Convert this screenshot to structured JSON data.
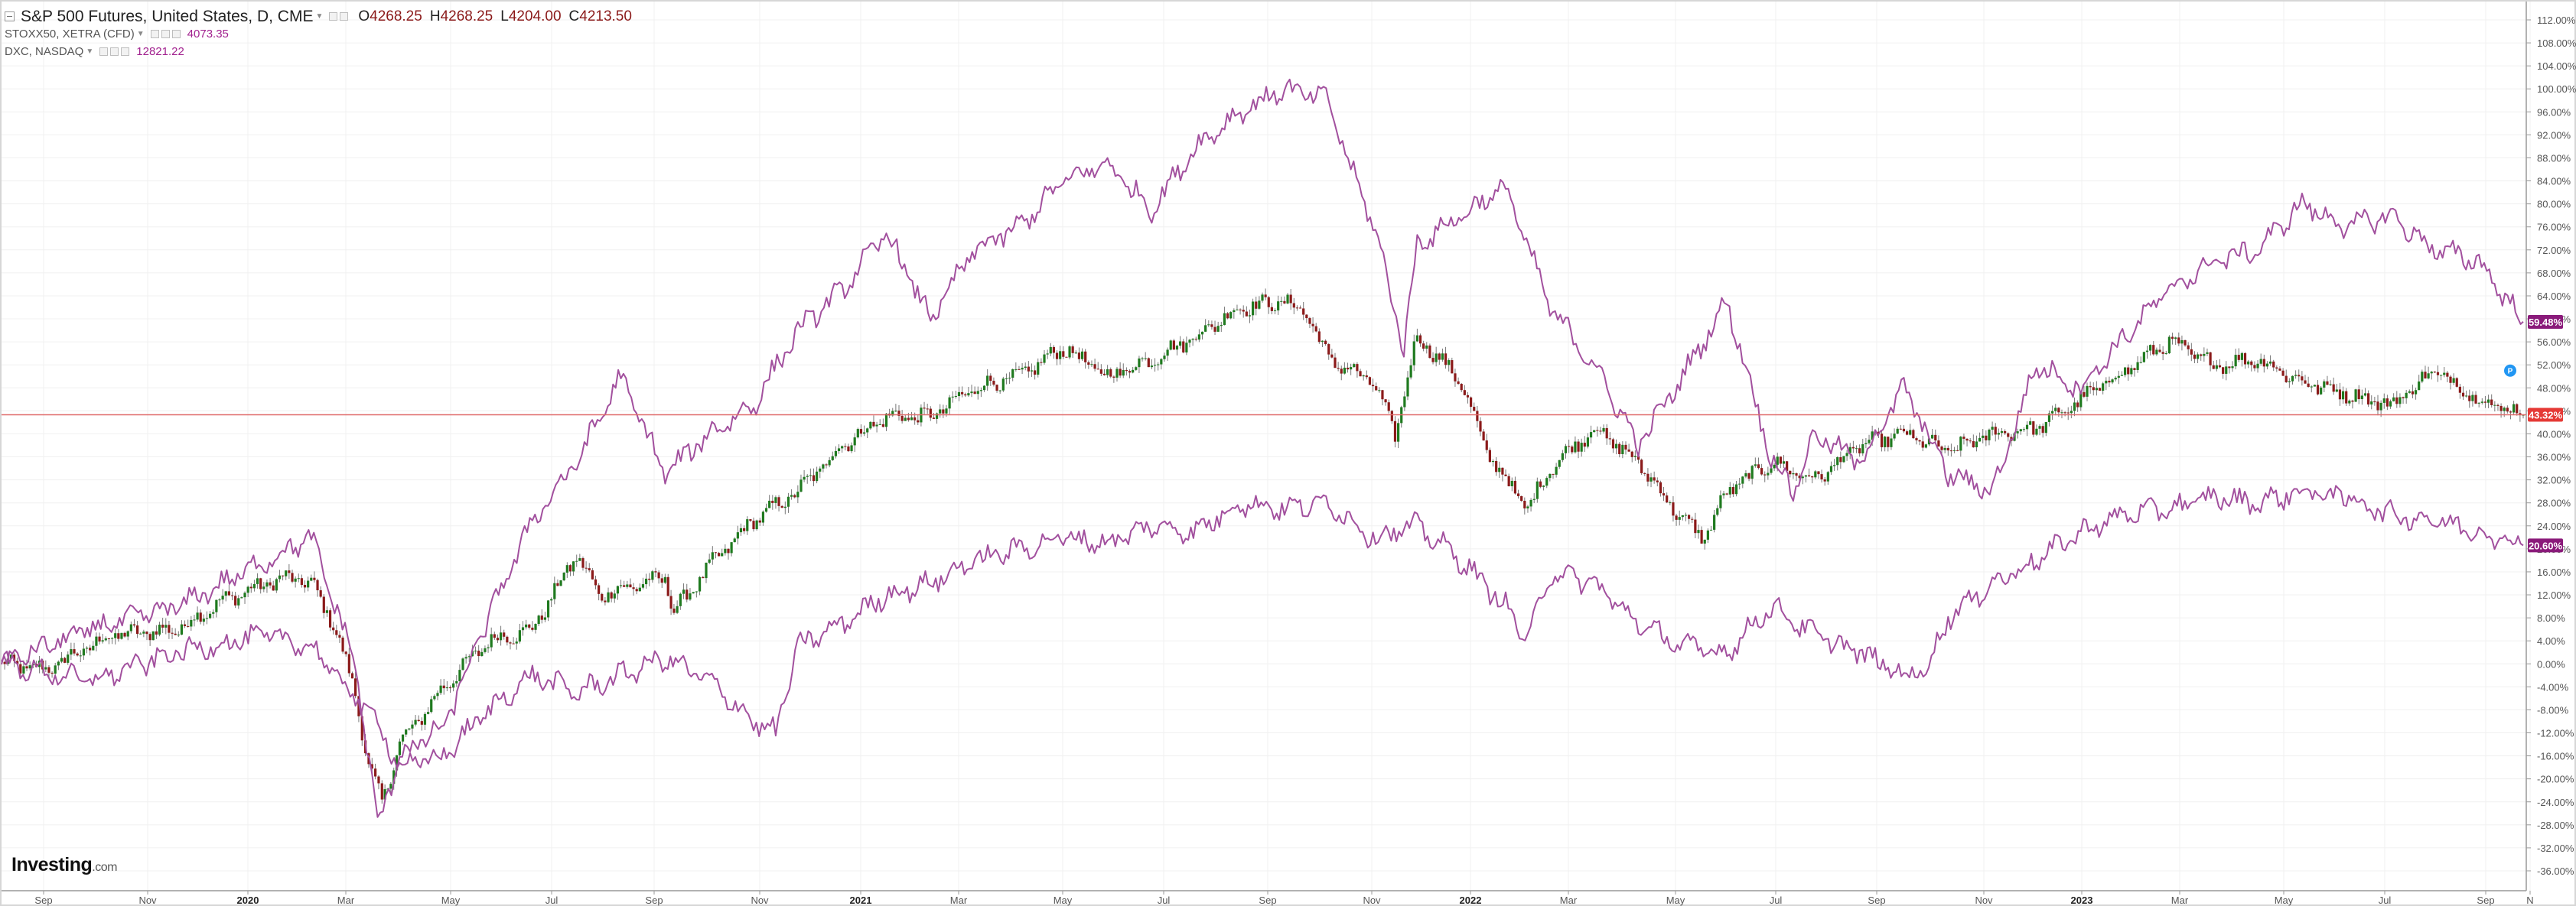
{
  "header": {
    "title": "S&P 500 Futures, United States, D, CME",
    "ohlc": [
      {
        "key": "O",
        "value": "4268.25"
      },
      {
        "key": "H",
        "value": "4268.25"
      },
      {
        "key": "L",
        "value": "4204.00"
      },
      {
        "key": "C",
        "value": "4213.50"
      }
    ],
    "compare": [
      {
        "name": "STOXX50, XETRA (CFD)",
        "value": "4073.35"
      },
      {
        "name": "DXC, NASDAQ",
        "value": "12821.22"
      }
    ]
  },
  "logo": {
    "name": "Investing",
    "suffix": ".com"
  },
  "colors": {
    "up_candle": "#1f7a1f",
    "down_candle": "#8b1a1a",
    "compare_line": "#a2509e",
    "current_line": "#e06a6a",
    "last_price_badge": "#e53935",
    "compare_badge": "#8a1a7a",
    "marker": "#2196f3"
  },
  "chart_data": {
    "type": "line",
    "x_axis": {
      "labels": [
        "Sep",
        "Nov",
        "2020",
        "Mar",
        "May",
        "Jul",
        "Sep",
        "Nov",
        "2021",
        "Mar",
        "May",
        "Jul",
        "Sep",
        "Nov",
        "2022",
        "Mar",
        "May",
        "Jul",
        "Sep",
        "Nov",
        "2023",
        "Mar",
        "May",
        "Jul",
        "Sep",
        "N"
      ],
      "bold_labels": [
        "2020",
        "2021",
        "2022",
        "2023"
      ]
    },
    "y_axis": {
      "unit": "%",
      "ylim": [
        -36,
        114
      ],
      "ticks": [
        "112.00%",
        "108.00%",
        "104.00%",
        "100.00%",
        "96.00%",
        "92.00%",
        "88.00%",
        "84.00%",
        "80.00%",
        "76.00%",
        "72.00%",
        "68.00%",
        "64.00%",
        "60.00%",
        "56.00%",
        "52.00%",
        "48.00%",
        "44.00%",
        "40.00%",
        "36.00%",
        "32.00%",
        "28.00%",
        "24.00%",
        "20.00%",
        "16.00%",
        "12.00%",
        "8.00%",
        "4.00%",
        "0.00%",
        "-4.00%",
        "-8.00%",
        "-12.00%",
        "-16.00%",
        "-20.00%",
        "-24.00%",
        "-28.00%",
        "-32.00%",
        "-36.00%"
      ]
    },
    "grid": true,
    "series": [
      {
        "style": "candlestick",
        "last_label": "43.32%",
        "last_value": 43.32,
        "points": [
          [
            0,
            0
          ],
          [
            1,
            -1
          ],
          [
            2.5,
            5
          ],
          [
            4,
            6
          ],
          [
            5,
            11
          ],
          [
            6,
            14
          ],
          [
            6.5,
            15
          ],
          [
            7,
            14
          ],
          [
            7.5,
            7
          ],
          [
            8,
            -5
          ],
          [
            8.3,
            -18
          ],
          [
            8.6,
            -24
          ],
          [
            9,
            -14
          ],
          [
            10,
            -4
          ],
          [
            11,
            4
          ],
          [
            12,
            6
          ],
          [
            13,
            19
          ],
          [
            13.5,
            12
          ],
          [
            14,
            13
          ],
          [
            15,
            15
          ],
          [
            15.2,
            9
          ],
          [
            16,
            17
          ],
          [
            17,
            25
          ],
          [
            18,
            30
          ],
          [
            19,
            38
          ],
          [
            20,
            43
          ],
          [
            21,
            43
          ],
          [
            22,
            48
          ],
          [
            23,
            50
          ],
          [
            24,
            55
          ],
          [
            25,
            50
          ],
          [
            26,
            53
          ],
          [
            27,
            57
          ],
          [
            28,
            62
          ],
          [
            29,
            63
          ],
          [
            29.5,
            61
          ],
          [
            30,
            53
          ],
          [
            31,
            49
          ],
          [
            31.5,
            40
          ],
          [
            32,
            57
          ],
          [
            33,
            49
          ],
          [
            33.5,
            38
          ],
          [
            34,
            32
          ],
          [
            34.5,
            27
          ],
          [
            35,
            34
          ],
          [
            36,
            41
          ],
          [
            37,
            35
          ],
          [
            38,
            25
          ],
          [
            38.5,
            22
          ],
          [
            39,
            30
          ],
          [
            40,
            35
          ],
          [
            41,
            32
          ],
          [
            42,
            38
          ],
          [
            43,
            40
          ],
          [
            44,
            37
          ],
          [
            45,
            40
          ],
          [
            46,
            41
          ],
          [
            47,
            46
          ],
          [
            48,
            51
          ],
          [
            49,
            56
          ],
          [
            50,
            52
          ],
          [
            51,
            53
          ],
          [
            52,
            49
          ],
          [
            53,
            47
          ],
          [
            54,
            45
          ],
          [
            55,
            51
          ],
          [
            56,
            46
          ],
          [
            57,
            43.3
          ]
        ]
      },
      {
        "style": "line",
        "last_label": "59.48%",
        "last_value": 59.48,
        "points": [
          [
            0,
            0
          ],
          [
            2,
            6
          ],
          [
            4,
            10
          ],
          [
            6,
            18
          ],
          [
            7,
            22
          ],
          [
            8,
            0
          ],
          [
            8.5,
            -28
          ],
          [
            9,
            -16
          ],
          [
            10,
            -11
          ],
          [
            11,
            8
          ],
          [
            12,
            25
          ],
          [
            13,
            35
          ],
          [
            14,
            50
          ],
          [
            15,
            33
          ],
          [
            16,
            40
          ],
          [
            17,
            45
          ],
          [
            18,
            58
          ],
          [
            19,
            65
          ],
          [
            20,
            75
          ],
          [
            21,
            60
          ],
          [
            22,
            72
          ],
          [
            23,
            76
          ],
          [
            24,
            84
          ],
          [
            25,
            87
          ],
          [
            26,
            79
          ],
          [
            27,
            90
          ],
          [
            28,
            96
          ],
          [
            29,
            100
          ],
          [
            30,
            98
          ],
          [
            30.5,
            86
          ],
          [
            31,
            77
          ],
          [
            31.7,
            55
          ],
          [
            32,
            73
          ],
          [
            33,
            78
          ],
          [
            34,
            83
          ],
          [
            35,
            62
          ],
          [
            36,
            52
          ],
          [
            37,
            38
          ],
          [
            38,
            50
          ],
          [
            39,
            63
          ],
          [
            40,
            36
          ],
          [
            40.5,
            30
          ],
          [
            41,
            40
          ],
          [
            42,
            35
          ],
          [
            43,
            48
          ],
          [
            44,
            33
          ],
          [
            45,
            30
          ],
          [
            46,
            52
          ],
          [
            47,
            48
          ],
          [
            48,
            57
          ],
          [
            49,
            65
          ],
          [
            50,
            70
          ],
          [
            51,
            72
          ],
          [
            52,
            80
          ],
          [
            53,
            76
          ],
          [
            54,
            78
          ],
          [
            55,
            72
          ],
          [
            56,
            70
          ],
          [
            57,
            59.5
          ]
        ]
      },
      {
        "style": "line",
        "last_label": "20.60%",
        "last_value": 20.6,
        "points": [
          [
            0,
            0
          ],
          [
            2,
            -3
          ],
          [
            4,
            2
          ],
          [
            6,
            5
          ],
          [
            7,
            3
          ],
          [
            8,
            -6
          ],
          [
            8.5,
            -10
          ],
          [
            9,
            -18
          ],
          [
            10,
            -16
          ],
          [
            11,
            -8
          ],
          [
            12,
            -2
          ],
          [
            13,
            -5
          ],
          [
            14,
            -2
          ],
          [
            15,
            1
          ],
          [
            16,
            -3
          ],
          [
            17,
            -10
          ],
          [
            17.5,
            -12
          ],
          [
            18,
            3
          ],
          [
            19,
            7
          ],
          [
            20,
            12
          ],
          [
            21,
            14
          ],
          [
            22,
            18
          ],
          [
            23,
            20
          ],
          [
            24,
            22
          ],
          [
            25,
            21
          ],
          [
            26,
            24
          ],
          [
            27,
            23
          ],
          [
            28,
            28
          ],
          [
            29,
            27
          ],
          [
            30,
            28
          ],
          [
            31,
            22
          ],
          [
            32,
            24
          ],
          [
            33,
            18
          ],
          [
            34,
            10
          ],
          [
            34.5,
            4
          ],
          [
            35,
            16
          ],
          [
            36,
            14
          ],
          [
            37,
            7
          ],
          [
            38,
            3
          ],
          [
            39,
            2
          ],
          [
            40,
            10
          ],
          [
            41,
            5
          ],
          [
            42,
            2
          ],
          [
            43,
            -2
          ],
          [
            43.5,
            -1
          ],
          [
            44,
            8
          ],
          [
            45,
            14
          ],
          [
            46,
            18
          ],
          [
            47,
            23
          ],
          [
            48,
            26
          ],
          [
            49,
            27
          ],
          [
            50,
            29
          ],
          [
            51,
            28
          ],
          [
            52,
            30
          ],
          [
            53,
            29
          ],
          [
            54,
            26
          ],
          [
            55,
            25
          ],
          [
            56,
            23
          ],
          [
            57,
            20.6
          ]
        ]
      }
    ],
    "current_price_line": 43.32,
    "legend": "top-left"
  }
}
